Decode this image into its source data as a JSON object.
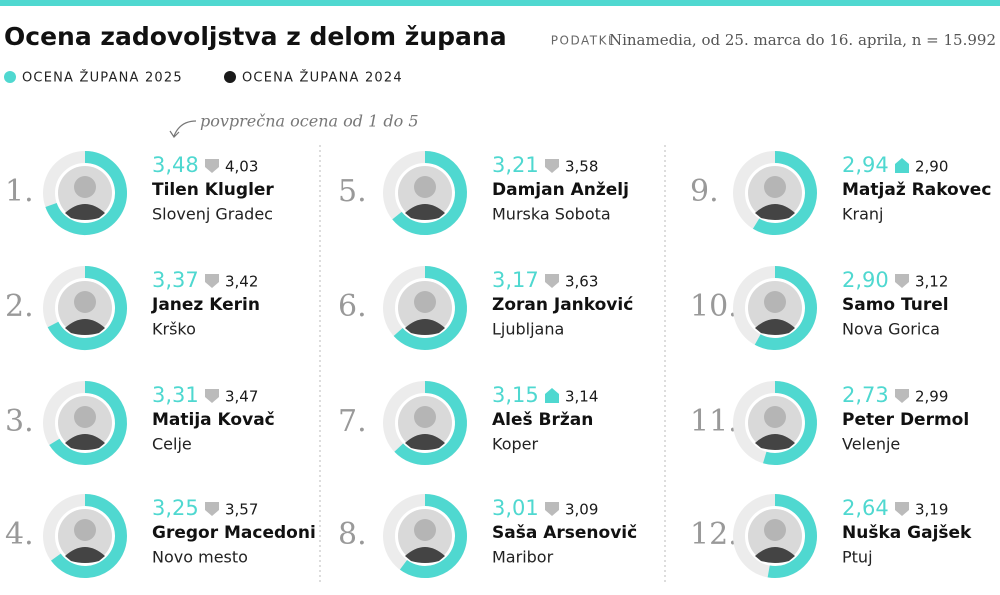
{
  "chart_data": {
    "type": "rank-rings",
    "title": "Ocena zadovoljstva z delom župana",
    "source_label": "PODATKI",
    "source": "Ninamedia, od 25. marca do 16. aprila, n = 15.992",
    "annotation": "povprečna ocena od 1 do 5",
    "ylim": [
      0,
      5
    ],
    "ranks": [
      "1.",
      "2.",
      "3.",
      "4.",
      "5.",
      "6.",
      "7.",
      "8.",
      "9.",
      "10.",
      "11.",
      "12."
    ],
    "categories": [
      "Tilen Klugler",
      "Janez Kerin",
      "Matija Kovač",
      "Gregor Macedoni",
      "Damjan Anželj",
      "Zoran Janković",
      "Aleš Bržan",
      "Saša Arsenovič",
      "Matjaž Rakovec",
      "Samo Turel",
      "Peter Dermol",
      "Nuška Gajšek"
    ],
    "places": [
      "Slovenj Gradec",
      "Krško",
      "Celje",
      "Novo mesto",
      "Murska Sobota",
      "Ljubljana",
      "Koper",
      "Maribor",
      "Kranj",
      "Nova Gorica",
      "Velenje",
      "Ptuj"
    ],
    "series": [
      {
        "name": "OCENA ŽUPANA 2025",
        "color": "#4fd8d0",
        "values": [
          3.48,
          3.37,
          3.31,
          3.25,
          3.21,
          3.17,
          3.15,
          3.01,
          2.94,
          2.9,
          2.73,
          2.64
        ],
        "value_labels": [
          "3,48",
          "3,37",
          "3,31",
          "3,25",
          "3,21",
          "3,17",
          "3,15",
          "3,01",
          "2,94",
          "2,90",
          "2,73",
          "2,64"
        ]
      },
      {
        "name": "OCENA ŽUPANA 2024",
        "color": "#1a1a1a",
        "values": [
          4.03,
          3.42,
          3.47,
          3.57,
          3.58,
          3.63,
          3.14,
          3.09,
          2.9,
          3.12,
          2.99,
          3.19
        ],
        "value_labels": [
          "4,03",
          "3,42",
          "3,47",
          "3,57",
          "3,58",
          "3,63",
          "3,14",
          "3,09",
          "2,90",
          "3,12",
          "2,99",
          "3,19"
        ]
      }
    ]
  }
}
